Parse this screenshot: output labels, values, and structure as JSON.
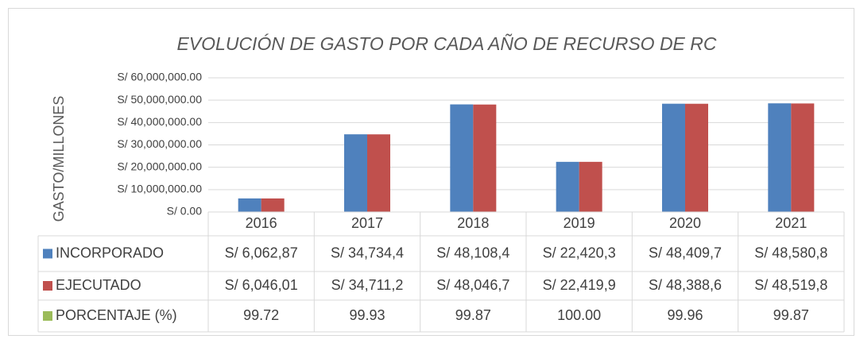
{
  "chart_data": {
    "type": "bar",
    "title": "EVOLUCIÓN DE GASTO POR CADA AÑO DE RECURSO DE RC",
    "y_label": "GASTO/MILLONES",
    "categories": [
      "2016",
      "2017",
      "2018",
      "2019",
      "2020",
      "2021"
    ],
    "series": [
      {
        "name": "INCORPORADO",
        "color": "#4f81bd",
        "values": [
          6062870,
          34734400,
          48108400,
          22420300,
          48409700,
          48580800
        ],
        "value_labels": [
          "S/ 6,062,87",
          "S/ 34,734,4",
          "S/ 48,108,4",
          "S/ 22,420,3",
          "S/ 48,409,7",
          "S/ 48,580,8"
        ]
      },
      {
        "name": "EJECUTADO",
        "color": "#c0504d",
        "values": [
          6046010,
          34711200,
          48046700,
          22419900,
          48388600,
          48519800
        ],
        "value_labels": [
          "S/ 6,046,01",
          "S/ 34,711,2",
          "S/ 48,046,7",
          "S/ 22,419,9",
          "S/ 48,388,6",
          "S/ 48,519,8"
        ]
      },
      {
        "name": "PORCENTAJE  (%)",
        "color": "#9bbb59",
        "axis": "y2",
        "values": [
          99.72,
          99.93,
          99.87,
          100,
          99.96,
          99.87
        ],
        "value_labels": [
          "99.72",
          "99.93",
          "99.87",
          "100.00",
          "99.96",
          "99.87"
        ]
      }
    ],
    "ylim": [
      0,
      60000000
    ],
    "yticks": [
      {
        "value": 0,
        "label": "S/ 0.00"
      },
      {
        "value": 10000000,
        "label": "S/ 10,000,000.00"
      },
      {
        "value": 20000000,
        "label": "S/ 20,000,000.00"
      },
      {
        "value": 30000000,
        "label": "S/ 30,000,000.00"
      },
      {
        "value": 40000000,
        "label": "S/ 40,000,000.00"
      },
      {
        "value": 50000000,
        "label": "S/ 50,000,000.00"
      },
      {
        "value": 60000000,
        "label": "S/ 60,000,000.00"
      }
    ],
    "grid": true
  }
}
